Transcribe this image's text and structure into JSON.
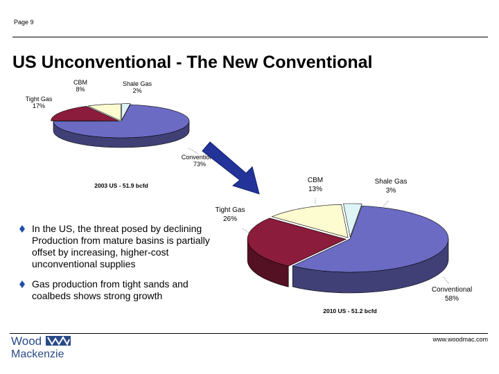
{
  "page": {
    "number_label": "Page 9",
    "title": "US Unconventional - The New Conventional",
    "url": "www.woodmac.com"
  },
  "logo": {
    "line1": "Wood",
    "line2": "Mackenzie"
  },
  "bullets": [
    "In the US, the threat posed by declining Production from mature basins is partially offset by increasing, higher-cost unconventional supplies",
    "Gas production from tight sands and coalbeds shows strong growth"
  ],
  "colors": {
    "conventional": "#6b6bc4",
    "tight_gas": "#8b1c3b",
    "cbm": "#fdfbd0",
    "shale_gas": "#dff4f4",
    "arrow": "#23339a"
  },
  "chart_data": [
    {
      "type": "pie",
      "title": "2003 US - 51.9 bcfd",
      "categories": [
        "Conventional",
        "Tight Gas",
        "CBM",
        "Shale Gas"
      ],
      "values": [
        73,
        17,
        8,
        2
      ],
      "labels": [
        "Conventional\n73%",
        "Tight Gas\n17%",
        "CBM\n8%",
        "Shale Gas\n2%"
      ]
    },
    {
      "type": "pie",
      "title": "2010 US - 51.2 bcfd",
      "categories": [
        "Conventional",
        "Tight Gas",
        "CBM",
        "Shale Gas"
      ],
      "values": [
        58,
        26,
        13,
        3
      ],
      "labels": [
        "Conventional\n58%",
        "Tight Gas\n26%",
        "CBM\n13%",
        "Shale Gas\n3%"
      ]
    }
  ]
}
